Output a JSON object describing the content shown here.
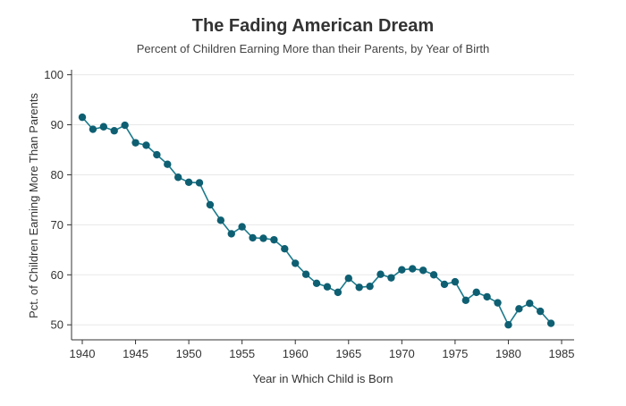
{
  "chart_data": {
    "type": "line",
    "title": "The Fading American Dream",
    "subtitle": "Percent of Children Earning More than their Parents, by Year of Birth",
    "xlabel": "Year in Which Child is Born",
    "ylabel": "Pct. of Children Earning More Than Parents",
    "xlim": [
      1940,
      1985
    ],
    "ylim": [
      47,
      101
    ],
    "xticks": [
      1940,
      1945,
      1950,
      1955,
      1960,
      1965,
      1970,
      1975,
      1980,
      1985
    ],
    "yticks": [
      50,
      60,
      70,
      80,
      90,
      100
    ],
    "grid": "horizontal",
    "line_color": "#1b7a8c",
    "marker_color": "#0e5f72",
    "x": [
      1940,
      1941,
      1942,
      1943,
      1944,
      1945,
      1946,
      1947,
      1948,
      1949,
      1950,
      1951,
      1952,
      1953,
      1954,
      1955,
      1956,
      1957,
      1958,
      1959,
      1960,
      1961,
      1962,
      1963,
      1964,
      1965,
      1966,
      1967,
      1968,
      1969,
      1970,
      1971,
      1972,
      1973,
      1974,
      1975,
      1976,
      1977,
      1978,
      1979,
      1980,
      1981,
      1982,
      1983,
      1984
    ],
    "y": [
      91.5,
      89.1,
      89.6,
      88.8,
      89.9,
      86.4,
      85.9,
      84.0,
      82.1,
      79.5,
      78.5,
      78.4,
      74.0,
      70.9,
      68.2,
      69.6,
      67.4,
      67.3,
      67.0,
      65.2,
      62.3,
      60.1,
      58.3,
      57.6,
      56.5,
      59.3,
      57.5,
      57.7,
      60.1,
      59.4,
      61.0,
      61.2,
      60.9,
      60.0,
      58.1,
      58.6,
      54.9,
      56.5,
      55.6,
      54.4,
      50.0,
      53.2,
      54.3,
      52.7,
      50.3
    ]
  }
}
